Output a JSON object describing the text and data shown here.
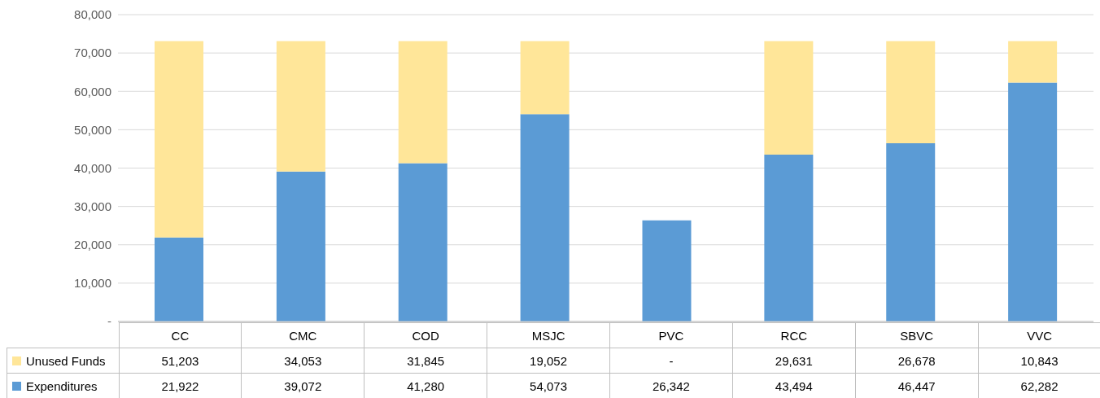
{
  "chart_data": {
    "type": "bar",
    "stacked": true,
    "categories": [
      "CC",
      "CMC",
      "COD",
      "MSJC",
      "PVC",
      "RCC",
      "SBVC",
      "VVC"
    ],
    "series": [
      {
        "name": "Expenditures",
        "color": "#5b9bd5",
        "values": [
          21922,
          39072,
          41280,
          54073,
          26342,
          43494,
          46447,
          62282
        ],
        "value_labels": [
          "21,922",
          "39,072",
          "41,280",
          "54,073",
          "26,342",
          "43,494",
          "46,447",
          "62,282"
        ]
      },
      {
        "name": "Unused Funds",
        "color": "#ffe699",
        "values": [
          51203,
          34053,
          31845,
          19052,
          null,
          29631,
          26678,
          10843
        ],
        "value_labels": [
          "51,203",
          "34,053",
          "31,845",
          "19,052",
          "-",
          "29,631",
          "26,678",
          "10,843"
        ]
      }
    ],
    "ylim": [
      0,
      80000
    ],
    "yticks": [
      {
        "value": 0,
        "label": "-"
      },
      {
        "value": 10000,
        "label": "10,000"
      },
      {
        "value": 20000,
        "label": "20,000"
      },
      {
        "value": 30000,
        "label": "30,000"
      },
      {
        "value": 40000,
        "label": "40,000"
      },
      {
        "value": 50000,
        "label": "50,000"
      },
      {
        "value": 60000,
        "label": "60,000"
      },
      {
        "value": 70000,
        "label": "70,000"
      },
      {
        "value": 80000,
        "label": "80,000"
      }
    ],
    "grid": "y",
    "legend": "bottom left"
  }
}
